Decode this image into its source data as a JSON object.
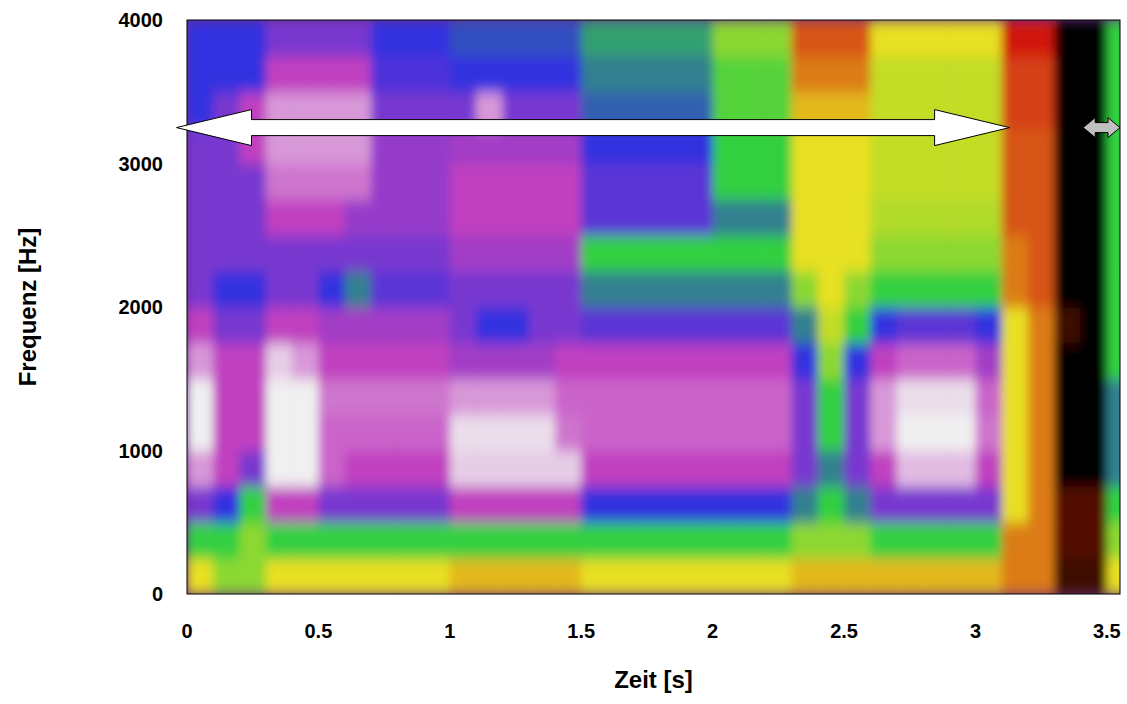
{
  "chart_data": {
    "type": "heatmap",
    "x_label": "Zeit [s]",
    "y_label": "Frequenz [Hz]",
    "xlim": [
      0,
      3.55
    ],
    "ylim": [
      0,
      4000
    ],
    "xticks": [
      0,
      0.5,
      1,
      1.5,
      2,
      2.5,
      3,
      3.5
    ],
    "yticks": [
      0,
      1000,
      2000,
      3000,
      4000
    ],
    "grid": false,
    "zlim": [
      0,
      6
    ],
    "x_bins": [
      0,
      0.1,
      0.2,
      0.3,
      0.4,
      0.5,
      0.6,
      0.7,
      0.8,
      0.9,
      1,
      1.1,
      1.2,
      1.3,
      1.4,
      1.5,
      1.6,
      1.7,
      1.8,
      1.9,
      2,
      2.1,
      2.2,
      2.3,
      2.4,
      2.5,
      2.6,
      2.7,
      2.8,
      2.9,
      3,
      3.1,
      3.2,
      3.3,
      3.4,
      3.5,
      3.6
    ],
    "y_bins": [
      0,
      250,
      500,
      750,
      1000,
      1250,
      1500,
      1750,
      2000,
      2250,
      2500,
      2750,
      3000,
      3250,
      3500,
      3750,
      4000
    ],
    "cells": [
      [
        2,
        2.5,
        2.5,
        2,
        2,
        2,
        2,
        2,
        2,
        2,
        1.8,
        1.8,
        1.8,
        1.8,
        1.8,
        2,
        2,
        2,
        2,
        2,
        2,
        2,
        2,
        1.8,
        1.8,
        1.8,
        1.8,
        1.8,
        1.8,
        1.8,
        1.8,
        1.5,
        1.5,
        0.3,
        0.3,
        2
      ],
      [
        3,
        3,
        2.5,
        3,
        3,
        3,
        3,
        3,
        3,
        3,
        3,
        3,
        3,
        3,
        3,
        3,
        3,
        3,
        3,
        3,
        3,
        3,
        3,
        2.5,
        2.5,
        2.5,
        3,
        3,
        3,
        3,
        3,
        1.5,
        1.5,
        0.4,
        0.4,
        2.5
      ],
      [
        4.5,
        4,
        3,
        5,
        5,
        4.5,
        4.5,
        4.5,
        4.5,
        4.5,
        5,
        5,
        5,
        5,
        5,
        4,
        4,
        4,
        4,
        4,
        4,
        4,
        4,
        3.5,
        3,
        3.5,
        4.5,
        4.5,
        4.5,
        4.5,
        4.5,
        2,
        1.5,
        0.4,
        0.4,
        3
      ],
      [
        5.5,
        5,
        4.5,
        6,
        6,
        5.2,
        5,
        5,
        5,
        5,
        5.8,
        5.8,
        5.8,
        5.8,
        5.8,
        5,
        5,
        5,
        5,
        5,
        5,
        5,
        5,
        4.5,
        3.5,
        4.5,
        5,
        5.7,
        5.7,
        5.7,
        5,
        2,
        1.5,
        0,
        0,
        3.5
      ],
      [
        6,
        5,
        5,
        6,
        6,
        5.2,
        5.2,
        5.2,
        5.2,
        5.2,
        5.9,
        5.9,
        5.9,
        5.9,
        5.3,
        5.2,
        5.2,
        5.2,
        5.2,
        5.2,
        5.2,
        5.2,
        5.2,
        4.5,
        3,
        4.5,
        5.5,
        6,
        6,
        6,
        5.3,
        2,
        1.5,
        0,
        0,
        3.5
      ],
      [
        6,
        5,
        5,
        6,
        6,
        5.3,
        5.3,
        5.3,
        5.3,
        5.3,
        5.5,
        5.5,
        5.5,
        5.5,
        5.2,
        5.2,
        5.2,
        5.2,
        5.2,
        5.2,
        5.2,
        5.2,
        5.2,
        4.5,
        3,
        4.5,
        5.5,
        5.9,
        5.9,
        5.9,
        5.2,
        2,
        1.5,
        0,
        0,
        3.5
      ],
      [
        5.5,
        5,
        5,
        5.8,
        5.5,
        5,
        5,
        5,
        5,
        5,
        4.8,
        4.8,
        4.8,
        4.8,
        5,
        5,
        5,
        5,
        5,
        5,
        5,
        5,
        5,
        4,
        2.5,
        4,
        5,
        5.2,
        5.2,
        5.2,
        4.8,
        2,
        1.5,
        0,
        0,
        3
      ],
      [
        5,
        4.5,
        4.5,
        5,
        5,
        4.8,
        4.8,
        4.8,
        4.8,
        4.8,
        4.5,
        4,
        4,
        4.5,
        4.5,
        4.3,
        4.3,
        4.3,
        4.3,
        4.3,
        4.3,
        4.3,
        4.3,
        3.5,
        2.2,
        3,
        4,
        4.3,
        4.3,
        4.3,
        4,
        2,
        1.5,
        0.3,
        0,
        3
      ],
      [
        4.5,
        4,
        4,
        4.5,
        4.5,
        4,
        3.5,
        4.3,
        4.3,
        4.3,
        4.5,
        4.5,
        4.5,
        4.5,
        4.5,
        3.5,
        3.5,
        3.5,
        3.5,
        3.5,
        3.5,
        3.5,
        3.5,
        2.5,
        2,
        2.5,
        3,
        3,
        3,
        3,
        3,
        1.5,
        1.3,
        0,
        0,
        3
      ],
      [
        4.5,
        4.5,
        4.5,
        4.5,
        4.5,
        4.5,
        4.5,
        4.5,
        4.5,
        4.5,
        4.8,
        4.8,
        4.8,
        4.8,
        4.8,
        3,
        3,
        3,
        3,
        3,
        3,
        3,
        3,
        2,
        2,
        2,
        2.5,
        2.5,
        2.5,
        2.5,
        2.5,
        1.5,
        1.3,
        0,
        0,
        3
      ],
      [
        4.5,
        4.5,
        4.5,
        5,
        5,
        5,
        4.7,
        4.7,
        4.7,
        4.7,
        5,
        5,
        5,
        5,
        5,
        4.3,
        4.3,
        4.3,
        4.3,
        4.3,
        3.5,
        3.5,
        3.5,
        2,
        2,
        2,
        2.3,
        2.3,
        2.3,
        2.3,
        2.3,
        1.3,
        1.3,
        0,
        0,
        3
      ],
      [
        4.5,
        4.5,
        4.5,
        5.3,
        5.3,
        5.3,
        5.3,
        4.7,
        4.7,
        4.7,
        5,
        5,
        5,
        5,
        5,
        4.3,
        4.3,
        4.3,
        4.3,
        4.3,
        3,
        3,
        3,
        2,
        2,
        2,
        2.2,
        2.2,
        2.2,
        2.2,
        2.2,
        1.3,
        1.3,
        0,
        0,
        3
      ],
      [
        4.5,
        4.5,
        5,
        5.5,
        5.5,
        5.5,
        5.5,
        4.7,
        4.7,
        4.7,
        4.8,
        4.8,
        4.8,
        4.8,
        4.8,
        4,
        4,
        4,
        4,
        4,
        3,
        3,
        3,
        2,
        2,
        2,
        2.2,
        2.2,
        2.2,
        2.2,
        2.2,
        1.3,
        1.3,
        0,
        0,
        3
      ],
      [
        4,
        4.5,
        5,
        5.5,
        5.5,
        5.5,
        5.5,
        4.5,
        4.5,
        4.5,
        4.5,
        5.5,
        4.5,
        4.5,
        4.5,
        3.7,
        3.7,
        3.7,
        3.7,
        3.7,
        2.8,
        2.8,
        2.8,
        1.8,
        1.8,
        1.8,
        2.2,
        2.2,
        2.2,
        2.2,
        2.2,
        1.2,
        1.2,
        0,
        0,
        3
      ],
      [
        4,
        4,
        4,
        5,
        5,
        5,
        5,
        4.2,
        4.2,
        4.2,
        4,
        4,
        4,
        4,
        4,
        3.5,
        3.5,
        3.5,
        3.5,
        3.5,
        2.8,
        2.8,
        2.8,
        1.5,
        1.5,
        1.5,
        2.2,
        2.2,
        2.2,
        2.2,
        2.2,
        1.2,
        1.2,
        0,
        0,
        3
      ],
      [
        4,
        4,
        4,
        4.5,
        4.5,
        4.5,
        4.5,
        4,
        4,
        4,
        3.8,
        3.8,
        3.8,
        3.8,
        3.8,
        3.3,
        3.3,
        3.3,
        3.3,
        3.3,
        2.5,
        2.5,
        2.5,
        1.3,
        1.3,
        1.3,
        2,
        2,
        2,
        2,
        2,
        1,
        1,
        0,
        0,
        3
      ]
    ],
    "arrows": [
      {
        "start": -0.04,
        "end": 3.13,
        "y": 3250,
        "color": "#ffffff"
      },
      {
        "start": 3.41,
        "end": 3.55,
        "y": 3250,
        "color": "#c0c0c0"
      }
    ]
  }
}
